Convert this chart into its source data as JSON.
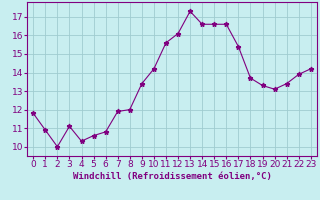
{
  "x": [
    0,
    1,
    2,
    3,
    4,
    5,
    6,
    7,
    8,
    9,
    10,
    11,
    12,
    13,
    14,
    15,
    16,
    17,
    18,
    19,
    20,
    21,
    22,
    23
  ],
  "y": [
    11.8,
    10.9,
    10.0,
    11.1,
    10.3,
    10.6,
    10.8,
    11.9,
    12.0,
    13.4,
    14.2,
    15.6,
    16.1,
    17.3,
    16.6,
    16.6,
    16.6,
    15.4,
    13.7,
    13.3,
    13.1,
    13.4,
    13.9,
    14.2
  ],
  "line_color": "#800080",
  "marker": "*",
  "marker_size": 3.5,
  "bg_color": "#c8eef0",
  "grid_color": "#a0ccd0",
  "xlabel": "Windchill (Refroidissement éolien,°C)",
  "xlabel_color": "#800080",
  "ylabel_ticks": [
    10,
    11,
    12,
    13,
    14,
    15,
    16,
    17
  ],
  "ylim": [
    9.5,
    17.8
  ],
  "xlim": [
    -0.5,
    23.5
  ],
  "xtick_labels": [
    "0",
    "1",
    "2",
    "3",
    "4",
    "5",
    "6",
    "7",
    "8",
    "9",
    "10",
    "11",
    "12",
    "13",
    "14",
    "15",
    "16",
    "17",
    "18",
    "19",
    "20",
    "21",
    "22",
    "23"
  ],
  "tick_color": "#800080",
  "spine_color": "#800080",
  "font_size": 6.5
}
